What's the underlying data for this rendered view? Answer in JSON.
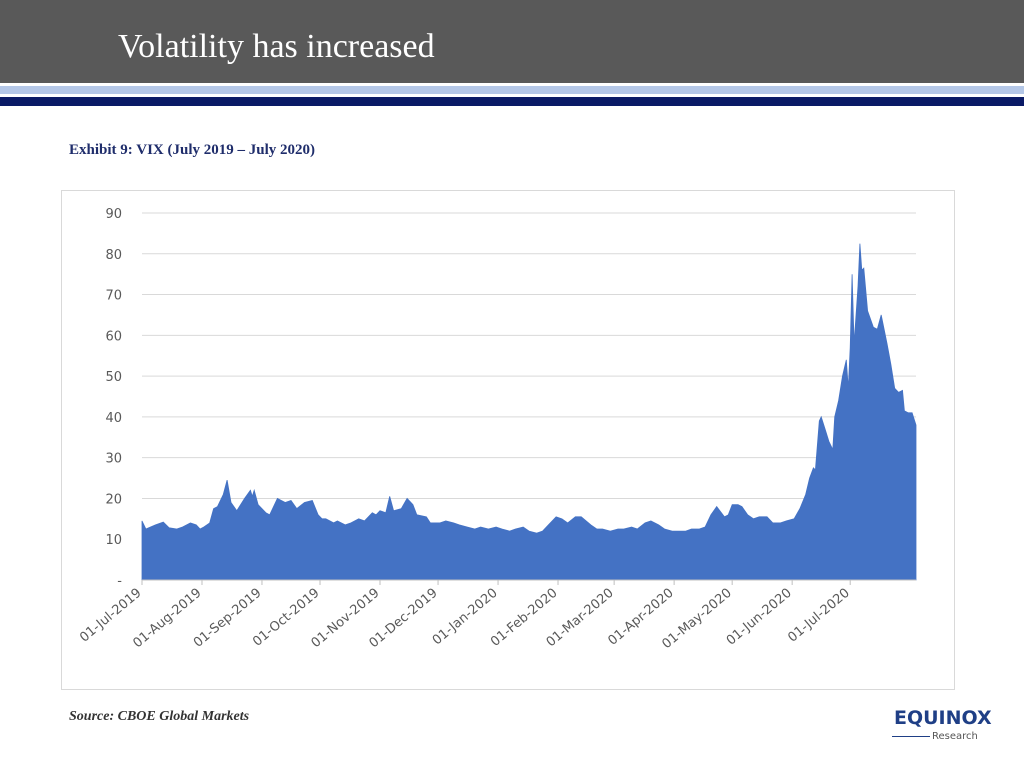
{
  "slide": {
    "title": "Volatility has increased",
    "exhibit_title": "Exhibit 9: VIX (July 2019 – July 2020)",
    "source": "Source: CBOE Global Markets"
  },
  "logo": {
    "name": "EQUINOX",
    "sub": "Research",
    "color": "#1f3f86"
  },
  "colors": {
    "header": "#595959",
    "series_fill": "#4472c4",
    "navy_stripe": "#0a1a66",
    "light_stripe": "#b4c7e7"
  },
  "chart_data": {
    "type": "area",
    "title": "",
    "xlabel": "",
    "ylabel": "",
    "ylim": [
      0,
      90
    ],
    "grid": true,
    "yticks": [
      {
        "value": 0,
        "label": "-"
      },
      {
        "value": 10,
        "label": "10"
      },
      {
        "value": 20,
        "label": "20"
      },
      {
        "value": 30,
        "label": "30"
      },
      {
        "value": 40,
        "label": "40"
      },
      {
        "value": 50,
        "label": "50"
      },
      {
        "value": 60,
        "label": "60"
      },
      {
        "value": 70,
        "label": "70"
      },
      {
        "value": 80,
        "label": "80"
      },
      {
        "value": 90,
        "label": "90"
      }
    ],
    "xticks": [
      {
        "date": "2019-07-01",
        "label": "01-Jul-2019"
      },
      {
        "date": "2019-08-01",
        "label": "01-Aug-2019"
      },
      {
        "date": "2019-09-01",
        "label": "01-Sep-2019"
      },
      {
        "date": "2019-10-01",
        "label": "01-Oct-2019"
      },
      {
        "date": "2019-11-01",
        "label": "01-Nov-2019"
      },
      {
        "date": "2019-12-01",
        "label": "01-Dec-2019"
      },
      {
        "date": "2020-01-01",
        "label": "01-Jan-2020"
      },
      {
        "date": "2020-02-01",
        "label": "01-Feb-2020"
      },
      {
        "date": "2020-03-01",
        "label": "01-Mar-2020"
      },
      {
        "date": "2020-04-01",
        "label": "01-Apr-2020"
      },
      {
        "date": "2020-05-01",
        "label": "01-May-2020"
      },
      {
        "date": "2020-06-01",
        "label": "01-Jun-2020"
      },
      {
        "date": "2020-07-01",
        "label": "01-Jul-2020"
      }
    ],
    "x_range": [
      "2019-07-01",
      "2020-08-04"
    ],
    "series": [
      {
        "color": "#4472c4",
        "points": [
          [
            "2019-07-01",
            14.5
          ],
          [
            "2019-07-03",
            12.5
          ],
          [
            "2019-07-08",
            13.5
          ],
          [
            "2019-07-12",
            14.2
          ],
          [
            "2019-07-15",
            12.8
          ],
          [
            "2019-07-19",
            12.5
          ],
          [
            "2019-07-22",
            13.0
          ],
          [
            "2019-07-26",
            14.0
          ],
          [
            "2019-07-29",
            13.5
          ],
          [
            "2019-07-31",
            12.5
          ],
          [
            "2019-08-02",
            13.0
          ],
          [
            "2019-08-05",
            14.0
          ],
          [
            "2019-08-07",
            17.5
          ],
          [
            "2019-08-09",
            18.0
          ],
          [
            "2019-08-12",
            21.0
          ],
          [
            "2019-08-14",
            24.5
          ],
          [
            "2019-08-16",
            19.0
          ],
          [
            "2019-08-19",
            17.0
          ],
          [
            "2019-08-23",
            20.0
          ],
          [
            "2019-08-26",
            22.0
          ],
          [
            "2019-08-27",
            20.5
          ],
          [
            "2019-08-28",
            22.0
          ],
          [
            "2019-08-30",
            18.5
          ],
          [
            "2019-09-03",
            16.5
          ],
          [
            "2019-09-05",
            16.0
          ],
          [
            "2019-09-09",
            20.0
          ],
          [
            "2019-09-11",
            19.5
          ],
          [
            "2019-09-13",
            19.0
          ],
          [
            "2019-09-16",
            19.5
          ],
          [
            "2019-09-19",
            17.5
          ],
          [
            "2019-09-23",
            19.0
          ],
          [
            "2019-09-27",
            19.5
          ],
          [
            "2019-09-30",
            16.0
          ],
          [
            "2019-10-02",
            15.0
          ],
          [
            "2019-10-04",
            15.0
          ],
          [
            "2019-10-08",
            14.0
          ],
          [
            "2019-10-10",
            14.5
          ],
          [
            "2019-10-14",
            13.5
          ],
          [
            "2019-10-17",
            14.0
          ],
          [
            "2019-10-21",
            15.0
          ],
          [
            "2019-10-24",
            14.5
          ],
          [
            "2019-10-28",
            16.5
          ],
          [
            "2019-10-30",
            16.0
          ],
          [
            "2019-11-01",
            17.0
          ],
          [
            "2019-11-04",
            16.5
          ],
          [
            "2019-11-06",
            20.5
          ],
          [
            "2019-11-08",
            17.0
          ],
          [
            "2019-11-12",
            17.5
          ],
          [
            "2019-11-15",
            20.0
          ],
          [
            "2019-11-18",
            18.5
          ],
          [
            "2019-11-20",
            16.0
          ],
          [
            "2019-11-25",
            15.5
          ],
          [
            "2019-11-27",
            14.0
          ],
          [
            "2019-12-02",
            14.0
          ],
          [
            "2019-12-05",
            14.5
          ],
          [
            "2019-12-09",
            14.0
          ],
          [
            "2019-12-12",
            13.5
          ],
          [
            "2019-12-16",
            13.0
          ],
          [
            "2019-12-20",
            12.5
          ],
          [
            "2019-12-23",
            13.0
          ],
          [
            "2019-12-27",
            12.5
          ],
          [
            "2019-12-31",
            13.0
          ],
          [
            "2020-01-03",
            12.5
          ],
          [
            "2020-01-07",
            12.0
          ],
          [
            "2020-01-10",
            12.5
          ],
          [
            "2020-01-14",
            13.0
          ],
          [
            "2020-01-17",
            12.0
          ],
          [
            "2020-01-21",
            11.5
          ],
          [
            "2020-01-24",
            12.0
          ],
          [
            "2020-01-27",
            13.5
          ],
          [
            "2020-01-31",
            15.5
          ],
          [
            "2020-02-03",
            15.0
          ],
          [
            "2020-02-06",
            14.0
          ],
          [
            "2020-02-10",
            15.5
          ],
          [
            "2020-02-13",
            15.5
          ],
          [
            "2020-02-18",
            13.5
          ],
          [
            "2020-02-21",
            12.5
          ],
          [
            "2020-02-24",
            12.5
          ],
          [
            "2020-02-28",
            12.0
          ],
          [
            "2020-03-03",
            12.5
          ],
          [
            "2020-03-06",
            12.5
          ],
          [
            "2020-03-10",
            13.0
          ],
          [
            "2020-03-13",
            12.5
          ],
          [
            "2020-03-17",
            14.0
          ],
          [
            "2020-03-20",
            14.5
          ],
          [
            "2020-03-24",
            13.5
          ],
          [
            "2020-03-27",
            12.5
          ],
          [
            "2020-03-31",
            12.0
          ],
          [
            "2020-04-03",
            12.0
          ],
          [
            "2020-04-07",
            12.0
          ],
          [
            "2020-04-10",
            12.5
          ],
          [
            "2020-04-14",
            12.5
          ],
          [
            "2020-04-17",
            13.0
          ],
          [
            "2020-04-20",
            16.0
          ],
          [
            "2020-04-23",
            18.0
          ],
          [
            "2020-04-27",
            15.5
          ],
          [
            "2020-04-29",
            16.0
          ],
          [
            "2020-05-01",
            18.5
          ],
          [
            "2020-05-04",
            18.5
          ],
          [
            "2020-05-06",
            18.0
          ],
          [
            "2020-05-09",
            16.0
          ],
          [
            "2020-05-12",
            15.0
          ],
          [
            "2020-05-15",
            15.5
          ],
          [
            "2020-05-19",
            15.5
          ],
          [
            "2020-05-22",
            14.0
          ],
          [
            "2020-05-26",
            14.0
          ],
          [
            "2020-05-29",
            14.5
          ],
          [
            "2020-06-02",
            15.0
          ],
          [
            "2020-06-05",
            17.5
          ],
          [
            "2020-06-08",
            21.0
          ],
          [
            "2020-06-10",
            25.0
          ],
          [
            "2020-06-12",
            27.5
          ],
          [
            "2020-06-13",
            27.0
          ],
          [
            "2020-06-15",
            39.0
          ],
          [
            "2020-06-16",
            40.0
          ],
          [
            "2020-06-18",
            37.0
          ],
          [
            "2020-06-20",
            34.0
          ],
          [
            "2020-06-22",
            32.0
          ],
          [
            "2020-06-23",
            40.0
          ],
          [
            "2020-06-25",
            44.0
          ],
          [
            "2020-06-27",
            50.0
          ],
          [
            "2020-06-29",
            54.0
          ],
          [
            "2020-06-30",
            47.0
          ],
          [
            "2020-07-01",
            57.0
          ],
          [
            "2020-07-02",
            75.0
          ],
          [
            "2020-07-03",
            58.0
          ],
          [
            "2020-07-05",
            72.0
          ],
          [
            "2020-07-06",
            82.5
          ],
          [
            "2020-07-07",
            76.0
          ],
          [
            "2020-07-08",
            76.5
          ],
          [
            "2020-07-10",
            66.0
          ],
          [
            "2020-07-13",
            62.0
          ],
          [
            "2020-07-15",
            61.5
          ],
          [
            "2020-07-17",
            65.0
          ],
          [
            "2020-07-20",
            58.0
          ],
          [
            "2020-07-22",
            53.0
          ],
          [
            "2020-07-24",
            47.0
          ],
          [
            "2020-07-26",
            46.0
          ],
          [
            "2020-07-28",
            46.5
          ],
          [
            "2020-07-29",
            41.5
          ],
          [
            "2020-07-31",
            41.0
          ],
          [
            "2020-08-02",
            41.0
          ],
          [
            "2020-08-04",
            38.0
          ]
        ]
      }
    ]
  }
}
